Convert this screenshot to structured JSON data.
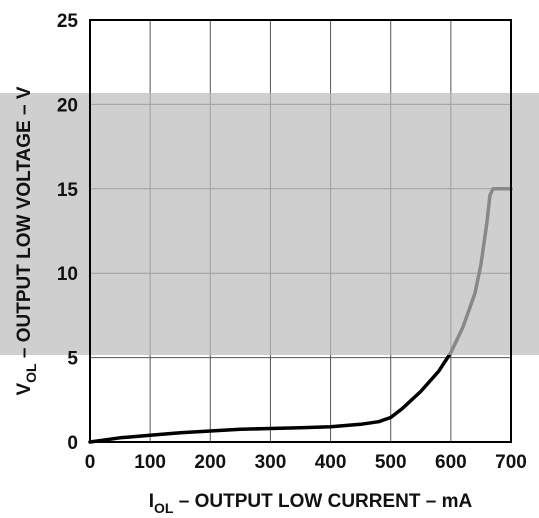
{
  "chart_data": {
    "type": "line",
    "title": "",
    "xlabel": {
      "main": "I",
      "sub": "OL",
      "rest": " – OUTPUT LOW CURRENT – mA"
    },
    "ylabel": {
      "main": "V",
      "sub": "OL",
      "rest": " – OUTPUT LOW VOLTAGE – V"
    },
    "xlim": [
      0,
      700
    ],
    "ylim": [
      0,
      25
    ],
    "xticks": [
      0,
      100,
      200,
      300,
      400,
      500,
      600,
      700
    ],
    "yticks": [
      0,
      5,
      10,
      15,
      20,
      25
    ],
    "grid": true,
    "series": [
      {
        "color": "#000000",
        "x": [
          0,
          50,
          100,
          150,
          200,
          250,
          300,
          350,
          400,
          450,
          480,
          500,
          520,
          550,
          580,
          600,
          620,
          640,
          650,
          660,
          665,
          670,
          700
        ],
        "y": [
          0.0,
          0.25,
          0.4,
          0.55,
          0.65,
          0.75,
          0.8,
          0.85,
          0.9,
          1.05,
          1.2,
          1.45,
          2.0,
          3.0,
          4.2,
          5.3,
          6.8,
          8.8,
          10.5,
          13.0,
          14.6,
          15.0,
          15.0
        ]
      }
    ],
    "overlay_color": "#bdbdbd"
  }
}
